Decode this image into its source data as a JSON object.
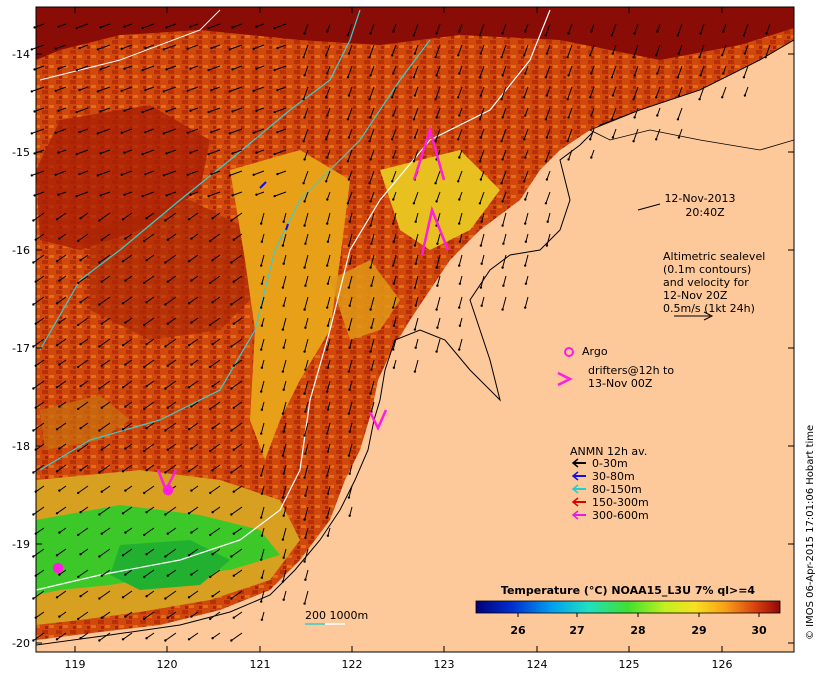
{
  "map": {
    "lat_ticks": [
      "-14",
      "-15",
      "-16",
      "-17",
      "-18",
      "-19",
      "-20"
    ],
    "lon_ticks": [
      "119",
      "120",
      "121",
      "122",
      "123",
      "124",
      "125",
      "126"
    ],
    "datetime_line1": "12-Nov-2013",
    "datetime_line2": "20:40Z",
    "sealevel_note": [
      "Altimetric sealevel",
      "(0.1m contours)",
      "and velocity for",
      "12-Nov 20Z",
      "0.5m/s (1kt 24h)"
    ],
    "argo_label": "Argo",
    "drifters_line1": "drifters@12h to",
    "drifters_line2": "13-Nov 00Z",
    "anmn_title": "ANMN 12h av.",
    "anmn_items": [
      {
        "label": "0-30m",
        "color": "#000000"
      },
      {
        "label": "30-80m",
        "color": "#1010e0"
      },
      {
        "label": "80-150m",
        "color": "#20d0d0"
      },
      {
        "label": "150-300m",
        "color": "#e00000"
      },
      {
        "label": "300-600m",
        "color": "#e020e0"
      }
    ],
    "isobath_label": "200 1000m",
    "colorbar_title": "Temperature (°C) NOAA15_L3U 7% ql>=4",
    "colorbar_ticks": [
      "26",
      "27",
      "28",
      "29",
      "30"
    ],
    "credit": "© IMOS 06-Apr-2015 17:01:06 Hobart time",
    "colors": {
      "land": "#fdc89a",
      "sst_warm": "#c8380a",
      "sst_hot": "#8a0c06",
      "sst_mid": "#e8a018",
      "sst_cool": "#5ad81e",
      "argo_drifter": "#ff1ee0",
      "isobath_200": "#3ccccc",
      "isobath_1000": "#ffffff"
    }
  }
}
